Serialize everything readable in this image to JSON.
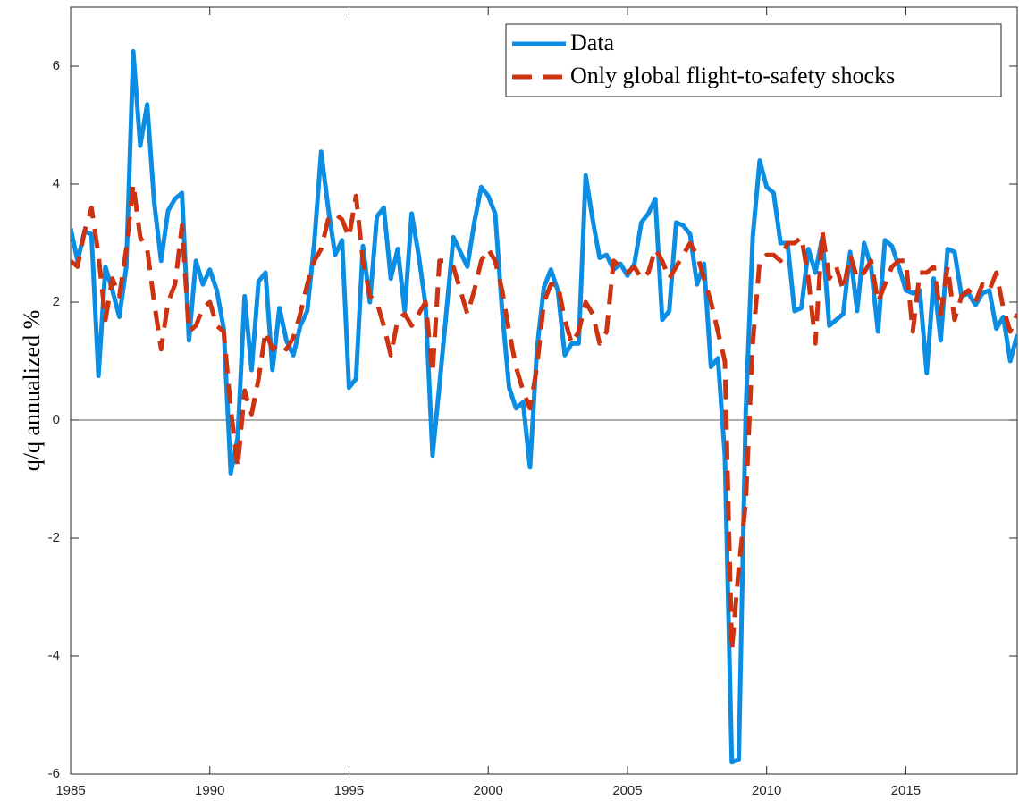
{
  "chart_data": {
    "type": "line",
    "ylabel": "q/q annualized %",
    "x": [
      1985,
      1985.25,
      1985.5,
      1985.75,
      1986,
      1986.25,
      1986.5,
      1986.75,
      1987,
      1987.25,
      1987.5,
      1987.75,
      1988,
      1988.25,
      1988.5,
      1988.75,
      1989,
      1989.25,
      1989.5,
      1989.75,
      1990,
      1990.25,
      1990.5,
      1990.75,
      1991,
      1991.25,
      1991.5,
      1991.75,
      1992,
      1992.25,
      1992.5,
      1992.75,
      1993,
      1993.25,
      1993.5,
      1993.75,
      1994,
      1994.25,
      1994.5,
      1994.75,
      1995,
      1995.25,
      1995.5,
      1995.75,
      1996,
      1996.25,
      1996.5,
      1996.75,
      1997,
      1997.25,
      1997.5,
      1997.75,
      1998,
      1998.25,
      1998.5,
      1998.75,
      1999,
      1999.25,
      1999.5,
      1999.75,
      2000,
      2000.25,
      2000.5,
      2000.75,
      2001,
      2001.25,
      2001.5,
      2001.75,
      2002,
      2002.25,
      2002.5,
      2002.75,
      2003,
      2003.25,
      2003.5,
      2003.75,
      2004,
      2004.25,
      2004.5,
      2004.75,
      2005,
      2005.25,
      2005.5,
      2005.75,
      2006,
      2006.25,
      2006.5,
      2006.75,
      2007,
      2007.25,
      2007.5,
      2007.75,
      2008,
      2008.25,
      2008.5,
      2008.75,
      2009,
      2009.25,
      2009.5,
      2009.75,
      2010,
      2010.25,
      2010.5,
      2010.75,
      2011,
      2011.25,
      2011.5,
      2011.75,
      2012,
      2012.25,
      2012.5,
      2012.75,
      2013,
      2013.25,
      2013.5,
      2013.75,
      2014,
      2014.25,
      2014.5,
      2014.75,
      2015,
      2015.25,
      2015.5,
      2015.75,
      2016,
      2016.25,
      2016.5,
      2016.75,
      2017,
      2017.25,
      2017.5,
      2017.75,
      2018,
      2018.25,
      2018.5,
      2018.75,
      2019
    ],
    "series": [
      {
        "name": "Data",
        "color": "#0b8de3",
        "dash": "solid",
        "values": [
          3.25,
          2.7,
          3.2,
          3.15,
          0.75,
          2.6,
          2.2,
          1.75,
          2.6,
          6.25,
          4.65,
          5.35,
          3.7,
          2.7,
          3.55,
          3.75,
          3.85,
          1.35,
          2.7,
          2.3,
          2.55,
          2.2,
          1.55,
          -0.9,
          -0.3,
          2.1,
          0.85,
          2.35,
          2.5,
          0.85,
          1.9,
          1.35,
          1.1,
          1.6,
          1.85,
          3.0,
          4.55,
          3.6,
          2.8,
          3.05,
          0.55,
          0.7,
          2.95,
          2.0,
          3.45,
          3.6,
          2.4,
          2.9,
          1.85,
          3.5,
          2.8,
          1.95,
          -0.6,
          0.6,
          1.85,
          3.1,
          2.85,
          2.6,
          3.35,
          3.95,
          3.8,
          3.5,
          1.85,
          0.55,
          0.2,
          0.3,
          -0.8,
          1.2,
          2.25,
          2.55,
          2.2,
          1.1,
          1.3,
          1.3,
          4.15,
          3.4,
          2.75,
          2.8,
          2.55,
          2.65,
          2.45,
          2.65,
          3.35,
          3.5,
          3.75,
          1.7,
          1.85,
          3.35,
          3.3,
          3.15,
          2.3,
          2.65,
          0.9,
          1.05,
          -0.6,
          -5.8,
          -5.75,
          0.15,
          3.1,
          4.4,
          3.95,
          3.85,
          3.0,
          3.0,
          1.85,
          1.9,
          2.9,
          2.5,
          3.1,
          1.6,
          1.7,
          1.8,
          2.85,
          1.85,
          3.0,
          2.6,
          1.5,
          3.05,
          2.95,
          2.6,
          2.2,
          2.15,
          2.2,
          0.8,
          2.4,
          1.35,
          2.9,
          2.85,
          2.1,
          2.15,
          1.95,
          2.15,
          2.2,
          1.55,
          1.75,
          1.0,
          1.45
        ]
      },
      {
        "name": "Only global flight-to-safety shocks",
        "color": "#cc3311",
        "dash": "dashed",
        "values": [
          2.7,
          2.6,
          3.2,
          3.6,
          2.8,
          1.7,
          2.4,
          2.1,
          2.9,
          4.0,
          3.1,
          2.9,
          2.0,
          1.2,
          2.0,
          2.3,
          3.3,
          1.5,
          1.6,
          1.9,
          2.0,
          1.6,
          1.5,
          0.2,
          -0.8,
          0.5,
          0.1,
          0.7,
          1.5,
          1.2,
          1.3,
          1.2,
          1.4,
          1.8,
          2.3,
          2.7,
          2.9,
          3.4,
          3.5,
          3.4,
          3.1,
          3.8,
          2.7,
          2.1,
          2.0,
          1.6,
          1.1,
          1.7,
          1.8,
          1.6,
          1.8,
          2.0,
          0.8,
          2.7,
          2.7,
          2.6,
          2.2,
          1.8,
          2.2,
          2.7,
          2.9,
          2.7,
          2.2,
          1.5,
          0.9,
          0.5,
          0.2,
          0.9,
          2.0,
          2.3,
          2.3,
          1.7,
          1.3,
          1.5,
          2.0,
          1.8,
          1.3,
          1.5,
          2.7,
          2.6,
          2.5,
          2.6,
          2.4,
          2.5,
          2.9,
          2.7,
          2.4,
          2.6,
          2.8,
          3.0,
          2.8,
          2.4,
          2.0,
          1.5,
          1.0,
          -3.9,
          -2.5,
          -1.4,
          1.3,
          2.7,
          2.8,
          2.8,
          2.7,
          3.0,
          3.0,
          3.1,
          2.4,
          1.3,
          3.2,
          2.4,
          2.6,
          2.2,
          2.8,
          2.4,
          2.5,
          2.7,
          2.0,
          2.3,
          2.6,
          2.7,
          2.7,
          1.5,
          2.5,
          2.5,
          2.6,
          1.8,
          2.6,
          1.7,
          2.1,
          2.2,
          2.0,
          2.3,
          2.2,
          2.5,
          1.9,
          1.5,
          1.8
        ]
      }
    ],
    "xlim": [
      1985,
      2019
    ],
    "xticks": [
      1985,
      1990,
      1995,
      2000,
      2005,
      2010,
      2015
    ],
    "ylim": [
      -6,
      7
    ],
    "yticks": [
      -6,
      -4,
      -2,
      0,
      2,
      4,
      6
    ],
    "zero_line": true,
    "legend": "upper right"
  }
}
